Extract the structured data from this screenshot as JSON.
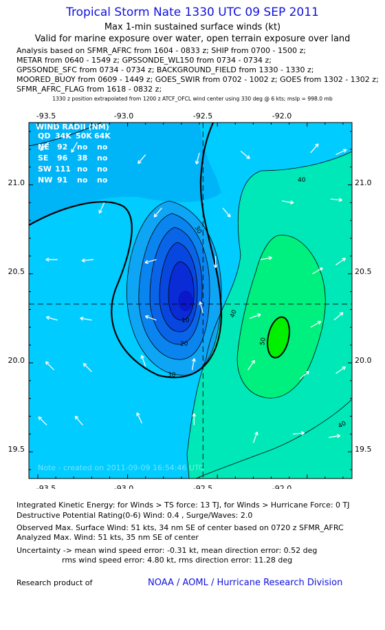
{
  "header": {
    "title": "Tropical Storm Nate 1330 UTC 09 SEP 2011",
    "subtitle1": "Max 1-min sustained surface winds (kt)",
    "subtitle2": "Valid for marine exposure over water, open terrain exposure over land",
    "analysis_lines": [
      "Analysis based on SFMR_AFRC from 1604 - 0833 z; SHIP from 0700 - 1500 z;",
      "METAR from 0640 - 1549 z; GPSSONDE_WL150 from 0734 - 0734 z;",
      "GPSSONDE_SFC from 0734 - 0734 z; BACKGROUND_FIELD from 1330 - 1330 z;",
      "MOORED_BUOY from 0609 - 1449 z; GOES_SWIR from 0702 - 1002 z; GOES from 1302 - 1302 z;",
      "SFMR_AFRC_FLAG from 1618 - 0832 z;"
    ],
    "position_note": "1330 z position extrapolated from 1200 z ATCF_OFCL wind center using 330 deg @ 6 kts; mslp = 998.0 mb"
  },
  "chart_data": {
    "type": "heatmap",
    "description_type": "filled contour map of surface wind speed",
    "x_ticks": [
      "-93.5",
      "-93.0",
      "-92.5",
      "-92.0"
    ],
    "y_ticks": [
      "21.0",
      "20.5",
      "20.0",
      "19.5"
    ],
    "xlim": [
      -93.55,
      -91.75
    ],
    "ylim": [
      19.35,
      21.35
    ],
    "center": {
      "lon": -92.58,
      "lat": 20.33
    },
    "contour_labels": [
      "10",
      "20",
      "30",
      "30",
      "40",
      "40",
      "40",
      "50"
    ],
    "wind_radii": {
      "header": [
        "QD",
        "34K",
        "50K",
        "64K"
      ],
      "title": "WIND RADII (NM)",
      "rows": [
        [
          "NE",
          "92",
          "no",
          "no"
        ],
        [
          "SE",
          "96",
          "38",
          "no"
        ],
        [
          "SW",
          "111",
          "no",
          "no"
        ],
        [
          "NW",
          "91",
          "no",
          "no"
        ]
      ]
    },
    "note": "Note - created on 2011-09-09 16:54:46 UTC",
    "colors": {
      "lt30": "#00c8ff",
      "b25_30": "#0a9cf2",
      "b20_25": "#0a78ee",
      "b15_20": "#0a58e8",
      "b10_15": "#0838de",
      "b5_10": "#0a1fd0",
      "b40_45": "#00ecb0",
      "b45_50": "#00f28a",
      "b50": "#00f000"
    },
    "wind_vectors": [
      {
        "lon": -93.44,
        "lat": 21.24,
        "dir": 225
      },
      {
        "lon": -93.28,
        "lat": 21.24,
        "dir": 240
      },
      {
        "lon": -92.6,
        "lat": 21.18,
        "dir": 255
      },
      {
        "lon": -92.37,
        "lat": 21.19,
        "dir": 320
      },
      {
        "lon": -91.98,
        "lat": 21.18,
        "dir": 50
      },
      {
        "lon": -91.84,
        "lat": 21.17,
        "dir": 25
      },
      {
        "lon": -92.9,
        "lat": 21.17,
        "dir": 230
      },
      {
        "lon": -93.13,
        "lat": 20.9,
        "dir": 245
      },
      {
        "lon": -92.81,
        "lat": 20.87,
        "dir": 230
      },
      {
        "lon": -92.47,
        "lat": 20.87,
        "dir": 310
      },
      {
        "lon": -92.14,
        "lat": 20.91,
        "dir": 350
      },
      {
        "lon": -91.87,
        "lat": 20.92,
        "dir": 355
      },
      {
        "lon": -93.39,
        "lat": 20.58,
        "dir": 180
      },
      {
        "lon": -93.19,
        "lat": 20.58,
        "dir": 185
      },
      {
        "lon": -92.84,
        "lat": 20.58,
        "dir": 195
      },
      {
        "lon": -92.51,
        "lat": 20.6,
        "dir": 270
      },
      {
        "lon": -92.26,
        "lat": 20.58,
        "dir": 10
      },
      {
        "lon": -91.97,
        "lat": 20.5,
        "dir": 30
      },
      {
        "lon": -91.84,
        "lat": 20.55,
        "dir": 35
      },
      {
        "lon": -93.39,
        "lat": 20.24,
        "dir": 165
      },
      {
        "lon": -93.2,
        "lat": 20.24,
        "dir": 170
      },
      {
        "lon": -92.84,
        "lat": 20.24,
        "dir": 160
      },
      {
        "lon": -92.58,
        "lat": 20.28,
        "dir": 105
      },
      {
        "lon": -92.32,
        "lat": 20.25,
        "dir": 20
      },
      {
        "lon": -91.98,
        "lat": 20.2,
        "dir": 30
      },
      {
        "lon": -91.85,
        "lat": 20.24,
        "dir": 40
      },
      {
        "lon": -93.41,
        "lat": 19.96,
        "dir": 135
      },
      {
        "lon": -93.2,
        "lat": 19.95,
        "dir": 135
      },
      {
        "lon": -92.9,
        "lat": 19.98,
        "dir": 110
      },
      {
        "lon": -92.64,
        "lat": 19.96,
        "dir": 80
      },
      {
        "lon": -92.33,
        "lat": 19.96,
        "dir": 55
      },
      {
        "lon": -92.04,
        "lat": 19.91,
        "dir": 40
      },
      {
        "lon": -91.84,
        "lat": 19.94,
        "dir": 35
      },
      {
        "lon": -93.45,
        "lat": 19.65,
        "dir": 135
      },
      {
        "lon": -93.25,
        "lat": 19.65,
        "dir": 130
      },
      {
        "lon": -92.92,
        "lat": 19.66,
        "dir": 115
      },
      {
        "lon": -92.63,
        "lat": 19.65,
        "dir": 90
      },
      {
        "lon": -92.3,
        "lat": 19.55,
        "dir": 70
      },
      {
        "lon": -92.08,
        "lat": 19.6,
        "dir": 5
      },
      {
        "lon": -91.88,
        "lat": 19.58,
        "dir": 10
      }
    ]
  },
  "footer": {
    "ike": "Integrated Kinetic Energy: for Winds > TS force: 13 TJ,  for Winds > Hurricane Force: 0 TJ",
    "dpr": "Destructive Potential Rating(0-6)   Wind: 0.4 , Surge/Waves: 2.0",
    "observed": "Observed Max. Surface Wind: 51 kts, 34 nm SE of center based on 0720 z SFMR_AFRC",
    "analyzed": "Analyzed Max. Wind: 51 kts, 35 nm SE of center",
    "uncertainty1": "Uncertainty -> mean wind speed error:  -0.31 kt,   mean direction error: 0.52 deg",
    "uncertainty2": "rms wind speed error: 4.80 kt,   rms direction error: 11.28 deg",
    "research": "Research product of",
    "org": "NOAA / AOML / Hurricane Research Division"
  }
}
